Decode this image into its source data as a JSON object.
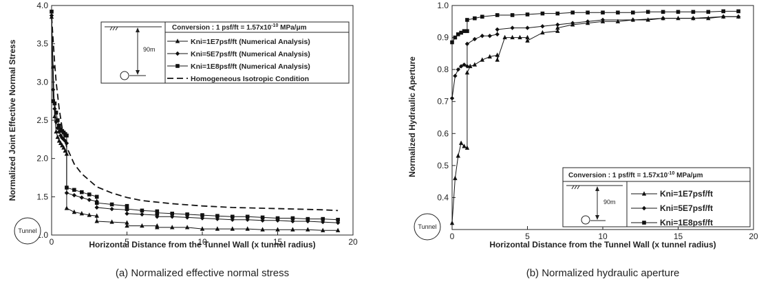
{
  "chart_data": [
    {
      "type": "line",
      "caption": "(a)  Normalized  effective  normal  stress",
      "xlabel": "Horizontal Distance from the Tunnel Wall (x tunnel radius)",
      "ylabel": "Normalized Joint Effective Normal Stress",
      "xlim": [
        0,
        20
      ],
      "ylim": [
        1.0,
        4.0
      ],
      "xticks": [
        "0",
        "5",
        "10",
        "15",
        "20"
      ],
      "yticks": [
        "1.0",
        "1.5",
        "2.0",
        "2.5",
        "3.0",
        "3.5",
        "4.0"
      ],
      "grid": false,
      "legend_position": "top-right",
      "conversion_text": "Conversion : 1 psf/ft = 1.57x10",
      "conversion_exp": "-10",
      "conversion_unit": " MPa/μm",
      "depth_label": "90m",
      "tunnel_label": "Tunnel",
      "series": [
        {
          "name": "Kni=1E7psf/ft (Numerical Analysis)",
          "marker": "triangle",
          "x": [
            0,
            0.1,
            0.2,
            0.3,
            0.4,
            0.5,
            0.6,
            0.7,
            0.8,
            0.9,
            1,
            1,
            1.5,
            2,
            2.5,
            3,
            3,
            4,
            5,
            5,
            6,
            7,
            7,
            8,
            9,
            10,
            11,
            12,
            13,
            14,
            15,
            16,
            17,
            18,
            19
          ],
          "y": [
            3.85,
            3.2,
            2.55,
            2.35,
            2.28,
            2.23,
            2.2,
            2.17,
            2.14,
            2.1,
            2.06,
            1.35,
            1.3,
            1.28,
            1.26,
            1.25,
            1.18,
            1.17,
            1.16,
            1.12,
            1.12,
            1.12,
            1.1,
            1.1,
            1.1,
            1.08,
            1.08,
            1.08,
            1.08,
            1.07,
            1.07,
            1.07,
            1.07,
            1.06,
            1.06
          ]
        },
        {
          "name": "Kni=5E7psf/ft (Numerical Analysis)",
          "marker": "diamond",
          "x": [
            0,
            0.1,
            0.2,
            0.3,
            0.4,
            0.5,
            0.6,
            0.7,
            0.8,
            0.9,
            1,
            1,
            1.5,
            2,
            2.5,
            3,
            3,
            4,
            5,
            5,
            6,
            7,
            7,
            8,
            9,
            10,
            11,
            12,
            13,
            14,
            15,
            16,
            17,
            18,
            19
          ],
          "y": [
            3.87,
            2.9,
            2.65,
            2.48,
            2.4,
            2.35,
            2.3,
            2.27,
            2.25,
            2.23,
            2.2,
            1.55,
            1.52,
            1.49,
            1.46,
            1.44,
            1.36,
            1.34,
            1.33,
            1.28,
            1.27,
            1.26,
            1.24,
            1.24,
            1.23,
            1.22,
            1.21,
            1.2,
            1.2,
            1.19,
            1.19,
            1.18,
            1.18,
            1.17,
            1.16
          ]
        },
        {
          "name": "Kni=1E8psf/ft (Numerical Analysis)",
          "marker": "square",
          "x": [
            0,
            0.1,
            0.2,
            0.3,
            0.4,
            0.5,
            0.6,
            0.7,
            0.8,
            0.9,
            1,
            1,
            1.5,
            2,
            2.5,
            3,
            3,
            4,
            5,
            5,
            6,
            7,
            7,
            8,
            9,
            10,
            11,
            12,
            13,
            14,
            15,
            16,
            17,
            18,
            19
          ],
          "y": [
            3.92,
            2.75,
            2.72,
            2.6,
            2.5,
            2.43,
            2.38,
            2.36,
            2.34,
            2.32,
            2.3,
            1.62,
            1.59,
            1.56,
            1.53,
            1.5,
            1.42,
            1.4,
            1.38,
            1.34,
            1.32,
            1.31,
            1.29,
            1.28,
            1.27,
            1.26,
            1.25,
            1.24,
            1.24,
            1.23,
            1.22,
            1.22,
            1.21,
            1.21,
            1.2
          ]
        },
        {
          "name": "Homogeneous Isotropic Condition",
          "marker": "dashed",
          "x": [
            0,
            0.1,
            0.2,
            0.3,
            0.5,
            0.7,
            1,
            1.5,
            2,
            3,
            4,
            5,
            6,
            8,
            10,
            12,
            14,
            16,
            18,
            19
          ],
          "y": [
            3.85,
            3.55,
            3.25,
            3.0,
            2.65,
            2.4,
            2.15,
            1.93,
            1.8,
            1.63,
            1.55,
            1.49,
            1.45,
            1.41,
            1.38,
            1.36,
            1.35,
            1.34,
            1.33,
            1.32
          ]
        }
      ]
    },
    {
      "type": "line",
      "caption": "(b)  Normalized  hydraulic  aperture",
      "xlabel": "Horizontal Distance from the Tunnel Wall (x tunnel radius)",
      "ylabel": "Normalized Hydraulic Aperture",
      "xlim": [
        0,
        20
      ],
      "ylim": [
        0.3,
        1.0
      ],
      "xticks": [
        "0",
        "5",
        "10",
        "15",
        "20"
      ],
      "yticks": [
        "0.4",
        "0.5",
        "0.6",
        "0.7",
        "0.8",
        "0.9",
        "1.0"
      ],
      "grid": false,
      "legend_position": "bottom-right",
      "conversion_text": "Conversion : 1 psf/ft = 1.57x10",
      "conversion_exp": "-10",
      "conversion_unit": " MPa/μm",
      "depth_label": "90m",
      "tunnel_label": "Tunnel",
      "series": [
        {
          "name": "Kni=1E7psf/ft",
          "marker": "triangle",
          "x": [
            0,
            0.2,
            0.4,
            0.6,
            0.8,
            1,
            1,
            1.2,
            1.5,
            2,
            2.5,
            3,
            3,
            3.5,
            4,
            4.5,
            5,
            5,
            6,
            7,
            7,
            8,
            9,
            10,
            11,
            12,
            13,
            14,
            15,
            16,
            17,
            18,
            19
          ],
          "y": [
            0.32,
            0.46,
            0.53,
            0.57,
            0.56,
            0.555,
            0.79,
            0.81,
            0.815,
            0.83,
            0.84,
            0.845,
            0.83,
            0.9,
            0.9,
            0.9,
            0.9,
            0.89,
            0.915,
            0.92,
            0.93,
            0.94,
            0.945,
            0.95,
            0.95,
            0.955,
            0.955,
            0.96,
            0.96,
            0.96,
            0.96,
            0.965,
            0.965
          ]
        },
        {
          "name": "Kni=5E7psf/ft",
          "marker": "diamond",
          "x": [
            0,
            0.2,
            0.4,
            0.6,
            0.8,
            1,
            1,
            1.5,
            2,
            2.5,
            3,
            3,
            4,
            5,
            6,
            7,
            8,
            9,
            10,
            12,
            14,
            16,
            18,
            19
          ],
          "y": [
            0.71,
            0.78,
            0.8,
            0.81,
            0.815,
            0.81,
            0.88,
            0.895,
            0.905,
            0.905,
            0.91,
            0.925,
            0.93,
            0.93,
            0.935,
            0.94,
            0.945,
            0.95,
            0.955,
            0.955,
            0.96,
            0.96,
            0.965,
            0.965
          ]
        },
        {
          "name": "Kni=1E8psf/ft",
          "marker": "square",
          "x": [
            0,
            0.2,
            0.4,
            0.6,
            0.8,
            1,
            1,
            1.5,
            2,
            3,
            4,
            5,
            6,
            7,
            8,
            9,
            10,
            11,
            12,
            13,
            14,
            15,
            16,
            17,
            18,
            19
          ],
          "y": [
            0.885,
            0.9,
            0.91,
            0.915,
            0.92,
            0.92,
            0.955,
            0.96,
            0.965,
            0.97,
            0.97,
            0.972,
            0.975,
            0.975,
            0.978,
            0.978,
            0.978,
            0.978,
            0.978,
            0.98,
            0.98,
            0.98,
            0.98,
            0.98,
            0.982,
            0.982
          ]
        }
      ]
    }
  ]
}
